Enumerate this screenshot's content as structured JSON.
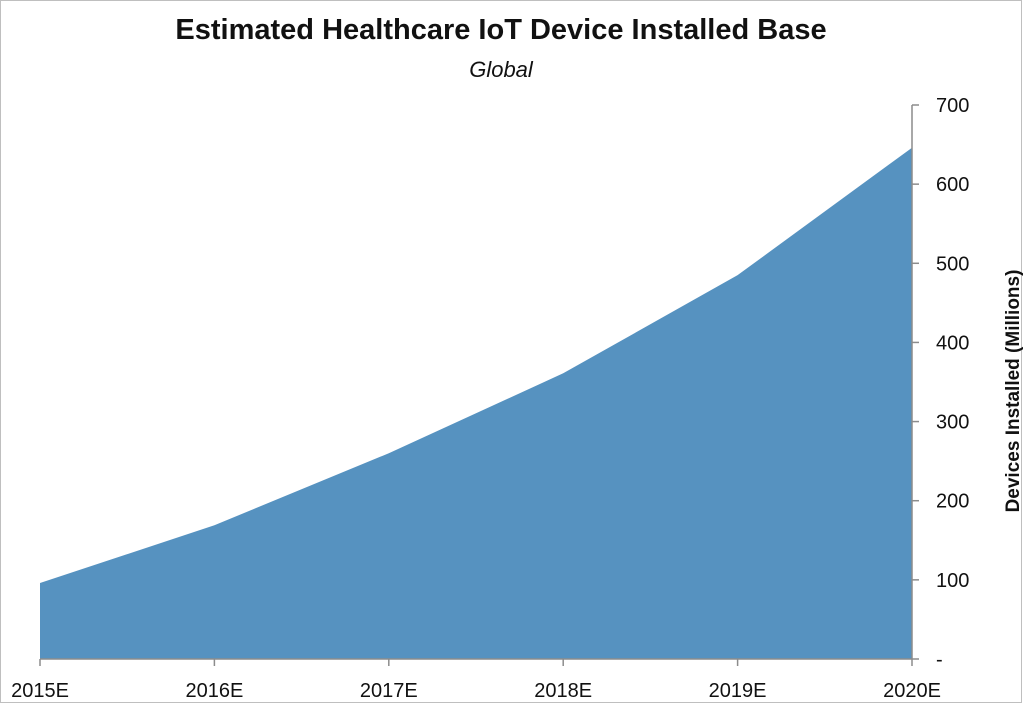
{
  "chart_data": {
    "type": "area",
    "title": "Estimated Healthcare IoT Device Installed Base",
    "subtitle": "Global",
    "categories": [
      "2015E",
      "2016E",
      "2017E",
      "2018E",
      "2019E",
      "2020E"
    ],
    "values": [
      96,
      169,
      260,
      361,
      485,
      646
    ],
    "ylabel": "Devices Installed (Millions)",
    "ylim": [
      0,
      700
    ],
    "y_ticks": [
      0,
      100,
      200,
      300,
      400,
      500,
      600,
      700
    ],
    "y_tick_labels": [
      "-",
      "100",
      "200",
      "300",
      "400",
      "500",
      "600",
      "700"
    ],
    "y_axis_side": "right",
    "grid": false,
    "legend": "none",
    "fill_color": "#5692C0",
    "axis_color": "#8c8c8c"
  }
}
